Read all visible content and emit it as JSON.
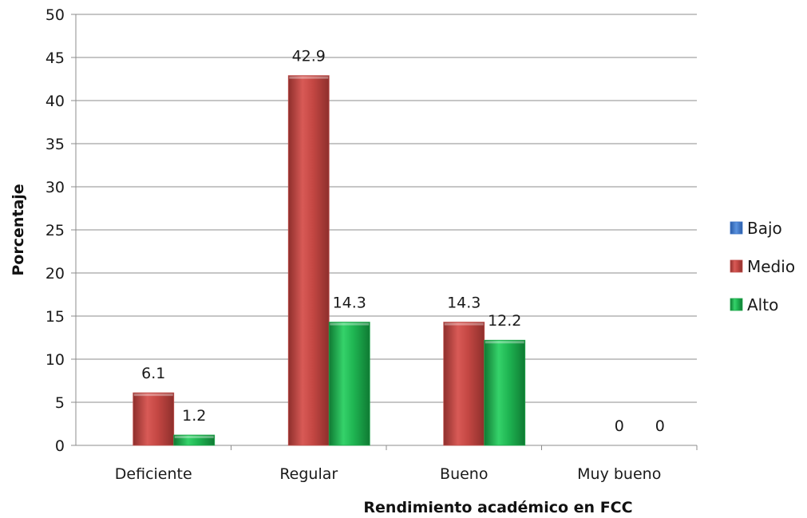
{
  "chart_data": {
    "type": "bar",
    "xlabel": "Rendimiento académico en FCC",
    "ylabel": "Porcentaje",
    "ylim": [
      0,
      50
    ],
    "ytick_step": 5,
    "grid": true,
    "legend_position": "right",
    "categories": [
      "Deficiente",
      "Regular",
      "Bueno",
      "Muy bueno"
    ],
    "series": [
      {
        "name": "Bajo",
        "color": "#3b73c7",
        "values": [
          null,
          null,
          null,
          null
        ],
        "labels": [
          "",
          "",
          "",
          ""
        ]
      },
      {
        "name": "Medio",
        "color": "#c0504d",
        "values": [
          6.1,
          42.9,
          14.3,
          0
        ],
        "labels": [
          "6.1",
          "42.9",
          "14.3",
          "0"
        ]
      },
      {
        "name": "Alto",
        "color": "#1fa84a",
        "values": [
          1.2,
          14.3,
          12.2,
          0
        ],
        "labels": [
          "1.2",
          "14.3",
          "12.2",
          "0"
        ]
      }
    ]
  }
}
